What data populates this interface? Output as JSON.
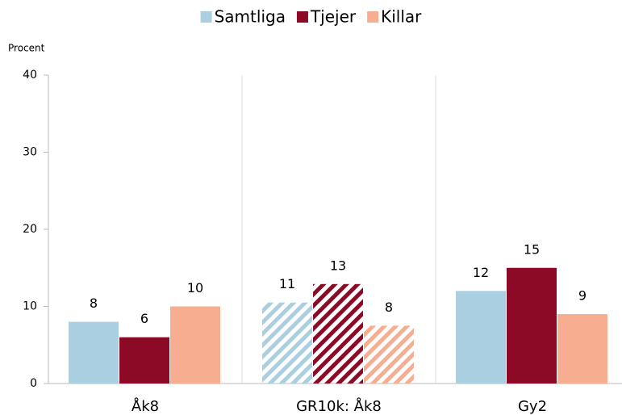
{
  "chart_data": {
    "type": "bar",
    "y_axis_label": "Procent",
    "categories": [
      "Åk8",
      "GR10k: Åk8",
      "Gy2"
    ],
    "hatch": [
      false,
      true,
      false
    ],
    "series": [
      {
        "name": "Samtliga",
        "color": "#a9cfe0",
        "values": [
          8,
          10.5,
          12
        ],
        "value_labels": [
          "8",
          "11",
          "12"
        ]
      },
      {
        "name": "Tjejer",
        "color": "#8c0a26",
        "values": [
          6,
          12.9,
          15
        ],
        "value_labels": [
          "6",
          "13",
          "15"
        ]
      },
      {
        "name": "Killar",
        "color": "#f7ae90",
        "values": [
          10,
          7.5,
          9
        ],
        "value_labels": [
          "10",
          "8",
          "9"
        ]
      }
    ],
    "ylim": [
      0,
      40
    ],
    "yticks": [
      0,
      10,
      20,
      30,
      40
    ],
    "legend": "top"
  }
}
